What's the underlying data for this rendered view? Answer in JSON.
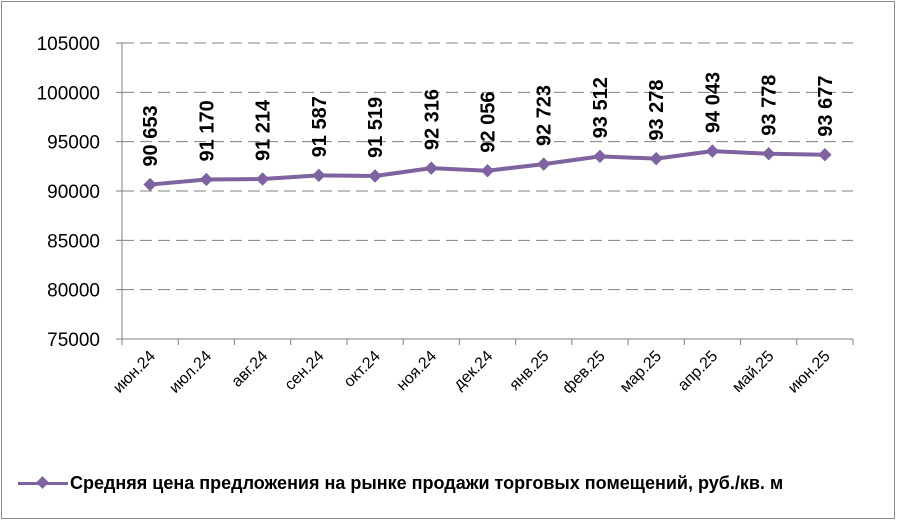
{
  "chart_data": {
    "type": "line",
    "categories": [
      "июн.24",
      "июл.24",
      "авг.24",
      "сен.24",
      "окт.24",
      "ноя.24",
      "дек.24",
      "янв.25",
      "фев.25",
      "мар.25",
      "апр.25",
      "май.25",
      "июн.25"
    ],
    "series": [
      {
        "name": "Средняя цена предложения на рынке продажи торговых помещений,  руб./кв. м",
        "values": [
          90653,
          91170,
          91214,
          91587,
          91519,
          92316,
          92056,
          92723,
          93512,
          93278,
          94043,
          93778,
          93677
        ],
        "labels": [
          "90 653",
          "91 170",
          "91 214",
          "91 587",
          "91 519",
          "92 316",
          "92 056",
          "92 723",
          "93 512",
          "93 278",
          "94 043",
          "93 778",
          "93 677"
        ],
        "color": "#7f63a1"
      }
    ],
    "yticks": [
      "75000",
      "80000",
      "85000",
      "90000",
      "95000",
      "100000",
      "105000"
    ],
    "ylim": [
      75000,
      105000
    ],
    "grid": true,
    "gridline_style": "dashed",
    "legend_position": "bottom",
    "title": "",
    "xlabel": "",
    "ylabel": ""
  }
}
